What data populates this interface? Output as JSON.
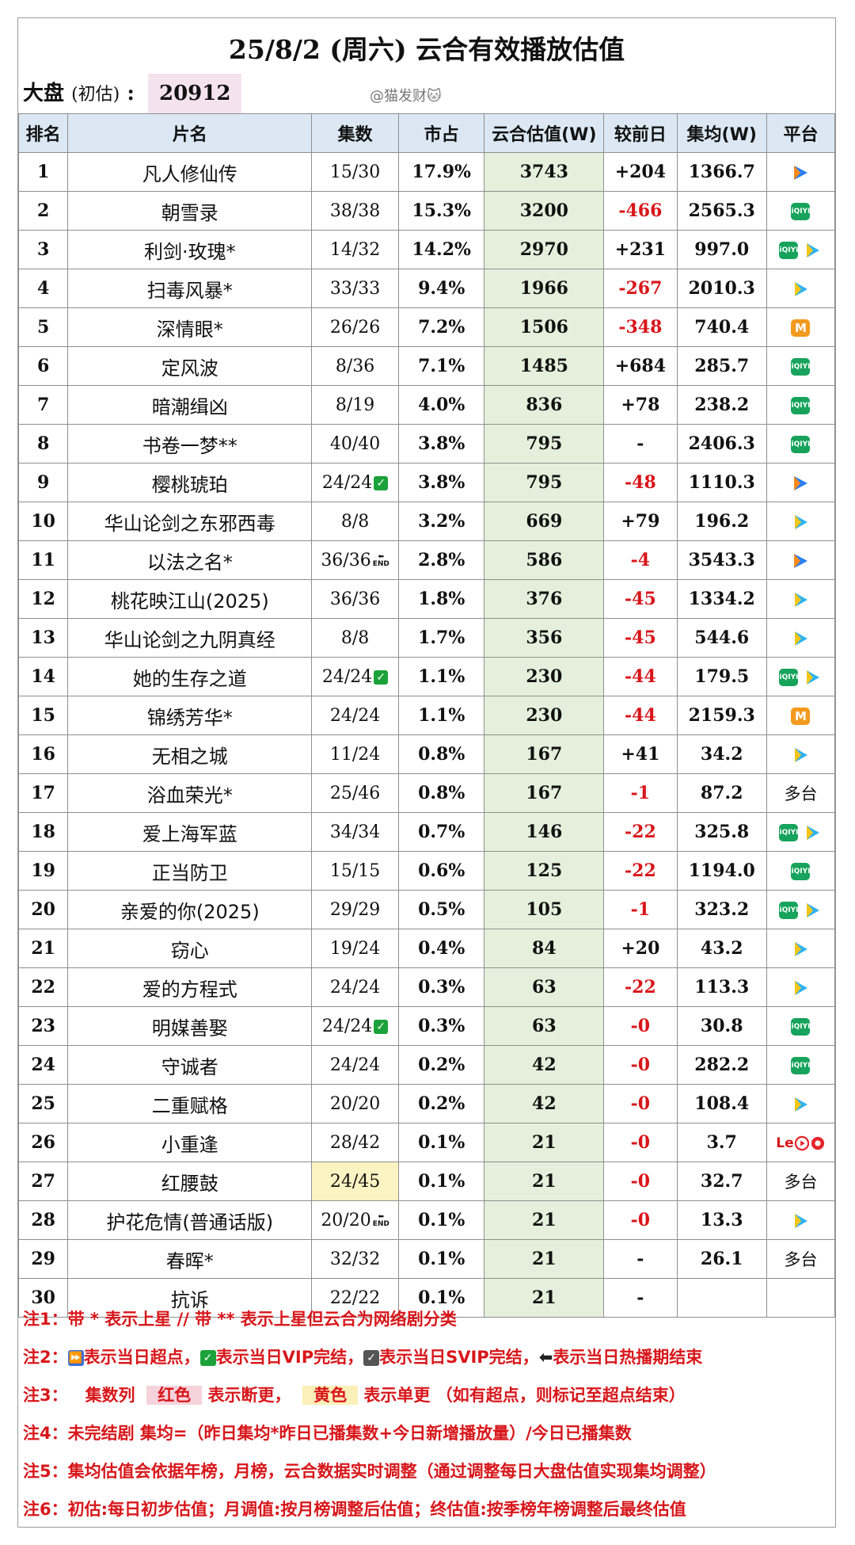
{
  "title": "25/8/2 (周六) 云合有效播放估值",
  "market": {
    "label": "大盘",
    "sub": "(初估)",
    "colon": ":",
    "value": "20912"
  },
  "watermark": "@猫发财🐱",
  "headers": [
    "排名",
    "片名",
    "集数",
    "市占",
    "云合估值(W)",
    "较前日",
    "集均(W)",
    "平台"
  ],
  "rows": [
    {
      "rank": "1",
      "name": "凡人修仙传",
      "ep": "15/30",
      "share": "17.9%",
      "est": "3743",
      "chg": "+204",
      "avg": "1366.7",
      "plat": [
        "tencent"
      ]
    },
    {
      "rank": "2",
      "name": "朝雪录",
      "ep": "38/38",
      "share": "15.3%",
      "est": "3200",
      "chg": "-466",
      "avg": "2565.3",
      "plat": [
        "iqiyi"
      ]
    },
    {
      "rank": "3",
      "name": "利剑·玫瑰*",
      "ep": "14/32",
      "share": "14.2%",
      "est": "2970",
      "chg": "+231",
      "avg": "997.0",
      "plat": [
        "iqiyi",
        "youku"
      ]
    },
    {
      "rank": "4",
      "name": "扫毒风暴*",
      "ep": "33/33",
      "share": "9.4%",
      "est": "1966",
      "chg": "-267",
      "avg": "2010.3",
      "plat": [
        "youku"
      ]
    },
    {
      "rank": "5",
      "name": "深情眼*",
      "ep": "26/26",
      "share": "7.2%",
      "est": "1506",
      "chg": "-348",
      "avg": "740.4",
      "plat": [
        "mango"
      ]
    },
    {
      "rank": "6",
      "name": "定风波",
      "ep": "8/36",
      "share": "7.1%",
      "est": "1485",
      "chg": "+684",
      "avg": "285.7",
      "plat": [
        "iqiyi"
      ]
    },
    {
      "rank": "7",
      "name": "暗潮缉凶",
      "ep": "8/19",
      "share": "4.0%",
      "est": "836",
      "chg": "+78",
      "avg": "238.2",
      "plat": [
        "iqiyi"
      ]
    },
    {
      "rank": "8",
      "name": "书卷一梦**",
      "ep": "40/40",
      "share": "3.8%",
      "est": "795",
      "chg": "-",
      "avg": "2406.3",
      "plat": [
        "iqiyi"
      ]
    },
    {
      "rank": "9",
      "name": "樱桃琥珀",
      "ep": "24/24",
      "share": "3.8%",
      "est": "795",
      "chg": "-48",
      "avg": "1110.3",
      "plat": [
        "tencent"
      ],
      "mark": "check"
    },
    {
      "rank": "10",
      "name": "华山论剑之东邪西毒",
      "ep": "8/8",
      "share": "3.2%",
      "est": "669",
      "chg": "+79",
      "avg": "196.2",
      "plat": [
        "youku"
      ]
    },
    {
      "rank": "11",
      "name": "以法之名*",
      "ep": "36/36",
      "share": "2.8%",
      "est": "586",
      "chg": "-4",
      "avg": "3543.3",
      "plat": [
        "tencent"
      ],
      "mark": "end"
    },
    {
      "rank": "12",
      "name": "桃花映江山(2025)",
      "ep": "36/36",
      "share": "1.8%",
      "est": "376",
      "chg": "-45",
      "avg": "1334.2",
      "plat": [
        "youku"
      ]
    },
    {
      "rank": "13",
      "name": "华山论剑之九阴真经",
      "ep": "8/8",
      "share": "1.7%",
      "est": "356",
      "chg": "-45",
      "avg": "544.6",
      "plat": [
        "youku"
      ]
    },
    {
      "rank": "14",
      "name": "她的生存之道",
      "ep": "24/24",
      "share": "1.1%",
      "est": "230",
      "chg": "-44",
      "avg": "179.5",
      "plat": [
        "iqiyi",
        "youku"
      ],
      "mark": "check"
    },
    {
      "rank": "15",
      "name": "锦绣芳华*",
      "ep": "24/24",
      "share": "1.1%",
      "est": "230",
      "chg": "-44",
      "avg": "2159.3",
      "plat": [
        "mango"
      ]
    },
    {
      "rank": "16",
      "name": "无相之城",
      "ep": "11/24",
      "share": "0.8%",
      "est": "167",
      "chg": "+41",
      "avg": "34.2",
      "plat": [
        "youku"
      ]
    },
    {
      "rank": "17",
      "name": "浴血荣光*",
      "ep": "25/46",
      "share": "0.8%",
      "est": "167",
      "chg": "-1",
      "avg": "87.2",
      "plat": [],
      "plattext": "多台"
    },
    {
      "rank": "18",
      "name": "爱上海军蓝",
      "ep": "34/34",
      "share": "0.7%",
      "est": "146",
      "chg": "-22",
      "avg": "325.8",
      "plat": [
        "iqiyi",
        "youku"
      ]
    },
    {
      "rank": "19",
      "name": "正当防卫",
      "ep": "15/15",
      "share": "0.6%",
      "est": "125",
      "chg": "-22",
      "avg": "1194.0",
      "plat": [
        "iqiyi"
      ]
    },
    {
      "rank": "20",
      "name": "亲爱的你(2025)",
      "ep": "29/29",
      "share": "0.5%",
      "est": "105",
      "chg": "-1",
      "avg": "323.2",
      "plat": [
        "iqiyi",
        "youku"
      ]
    },
    {
      "rank": "21",
      "name": "窃心",
      "ep": "19/24",
      "share": "0.4%",
      "est": "84",
      "chg": "+20",
      "avg": "43.2",
      "plat": [
        "youku"
      ]
    },
    {
      "rank": "22",
      "name": "爱的方程式",
      "ep": "24/24",
      "share": "0.3%",
      "est": "63",
      "chg": "-22",
      "avg": "113.3",
      "plat": [
        "youku"
      ]
    },
    {
      "rank": "23",
      "name": "明媒善娶",
      "ep": "24/24",
      "share": "0.3%",
      "est": "63",
      "chg": "-0",
      "avg": "30.8",
      "plat": [
        "iqiyi"
      ],
      "mark": "check"
    },
    {
      "rank": "24",
      "name": "守诚者",
      "ep": "24/24",
      "share": "0.2%",
      "est": "42",
      "chg": "-0",
      "avg": "282.2",
      "plat": [
        "iqiyi"
      ]
    },
    {
      "rank": "25",
      "name": "二重赋格",
      "ep": "20/20",
      "share": "0.2%",
      "est": "42",
      "chg": "-0",
      "avg": "108.4",
      "plat": [
        "youku"
      ]
    },
    {
      "rank": "26",
      "name": "小重逢",
      "ep": "28/42",
      "share": "0.1%",
      "est": "21",
      "chg": "-0",
      "avg": "3.7",
      "plat": [
        "le",
        "red",
        "red2"
      ]
    },
    {
      "rank": "27",
      "name": "红腰鼓",
      "ep": "24/45",
      "share": "0.1%",
      "est": "21",
      "chg": "-0",
      "avg": "32.7",
      "plat": [],
      "plattext": "多台",
      "ephl": true
    },
    {
      "rank": "28",
      "name": "护花危情(普通话版)",
      "ep": "20/20",
      "share": "0.1%",
      "est": "21",
      "chg": "-0",
      "avg": "13.3",
      "plat": [
        "youku"
      ],
      "mark": "end"
    },
    {
      "rank": "29",
      "name": "春晖*",
      "ep": "32/32",
      "share": "0.1%",
      "est": "21",
      "chg": "-",
      "avg": "26.1",
      "plat": [],
      "plattext": "多台"
    },
    {
      "rank": "30",
      "name": "抗诉",
      "ep": "22/22",
      "share": "0.1%",
      "est": "21",
      "chg": "-",
      "avg": "",
      "plat": []
    }
  ],
  "notes": {
    "n1": "注1：带 * 表示上星 // 带 ** 表示上星但云合为网络剧分类",
    "n2a": "表示当日超点，",
    "n2b": "表示当日VIP完结，",
    "n2c": "表示当日SVIP完结，",
    "n2d": "表示当日热播期结束",
    "n2label": "注2：",
    "n3label": "注3：",
    "n3a": "集数列",
    "n3red": "红色",
    "n3b": "表示断更，",
    "n3yel": "黄色",
    "n3c": "表示单更 （如有超点，则标记至超点结束）",
    "n4": "注4：未完结剧 集均=（昨日集均*昨日已播集数+今日新增播放量）/今日已播集数",
    "n5": "注5：集均估值会依据年榜，月榜，云合数据实时调整（通过调整每日大盘估值实现集均调整）",
    "n6": "注6：初估:每日初步估值；月调值:按月榜调整后估值；终估值:按季榜年榜调整后最终估值"
  },
  "colors": {
    "red": "#d8161a",
    "header": "#dbe8f4",
    "est": "#e4f0dc",
    "green": "#1ba23a"
  }
}
